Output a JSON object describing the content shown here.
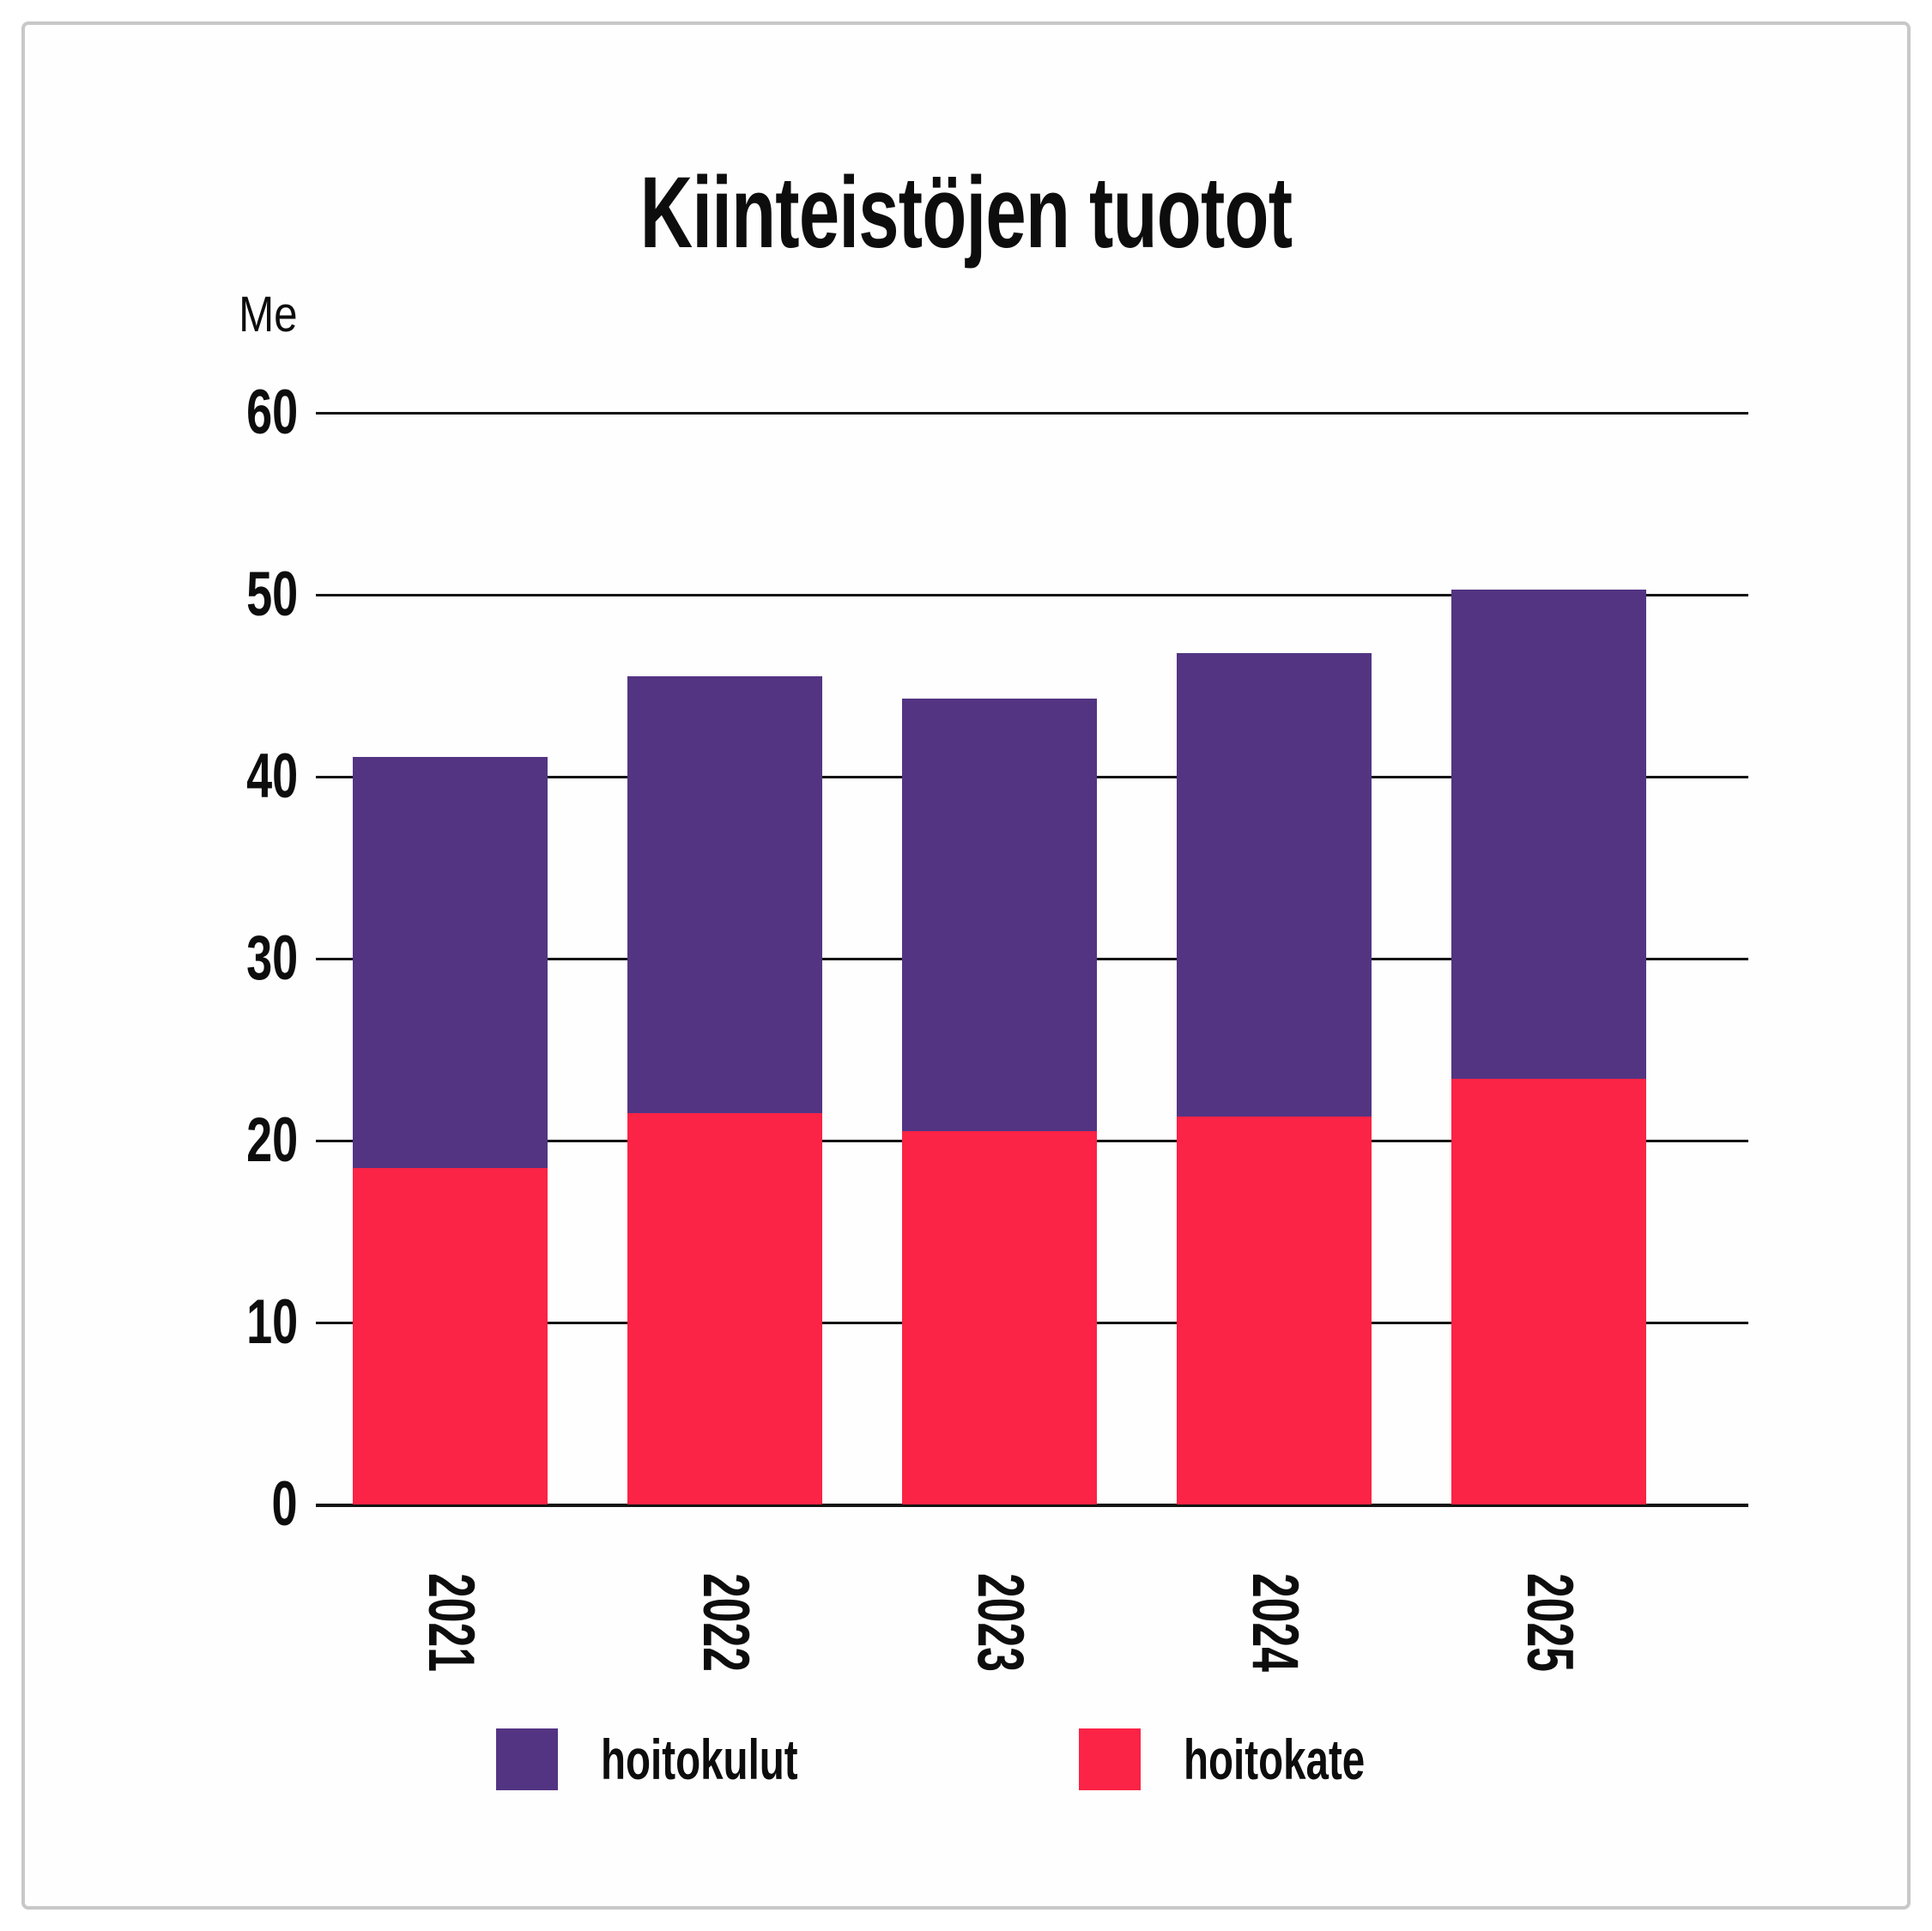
{
  "title": "Kiinteistöjen tuotot",
  "y_axis_unit_label": "Me",
  "colors": {
    "hoitokulut": "#533483",
    "hoitokate": "#FB2346",
    "gridline": "#141414",
    "frame_border": "#c8c8c8",
    "text": "#0d0d0d"
  },
  "chart_data": {
    "type": "bar",
    "stacked": true,
    "title": "Kiinteistöjen tuotot",
    "ylabel": "Me",
    "xlabel": "",
    "categories": [
      "2021",
      "2022",
      "2023",
      "2024",
      "2025"
    ],
    "series": [
      {
        "name": "hoitokate",
        "color": "#FB2346",
        "values": [
          18.5,
          21.5,
          20.5,
          21.3,
          23.4
        ]
      },
      {
        "name": "hoitokulut",
        "color": "#533483",
        "values": [
          22.6,
          24.0,
          23.8,
          25.5,
          26.9
        ]
      }
    ],
    "stack_totals": [
      41.1,
      45.5,
      44.3,
      46.8,
      50.3
    ],
    "ylim": [
      0,
      60
    ],
    "yticks": [
      0,
      10,
      20,
      30,
      40,
      50,
      60
    ],
    "grid": true,
    "x_tick_rotation_deg": 90,
    "legend_position": "bottom",
    "legend_order": [
      "hoitokulut",
      "hoitokate"
    ]
  },
  "legend": {
    "items": [
      {
        "label": "hoitokulut",
        "color": "#533483"
      },
      {
        "label": "hoitokate",
        "color": "#FB2346"
      }
    ]
  }
}
